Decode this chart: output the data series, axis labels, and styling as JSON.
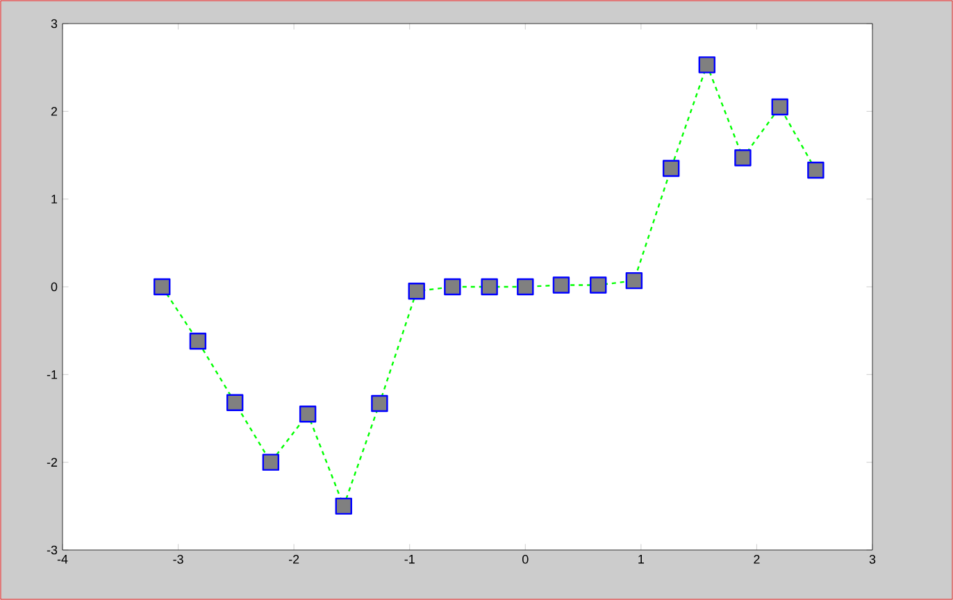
{
  "chart_data": {
    "type": "line",
    "x": [
      -3.14,
      -2.83,
      -2.51,
      -2.2,
      -1.88,
      -1.57,
      -1.26,
      -0.94,
      -0.63,
      -0.31,
      0,
      0.31,
      0.63,
      0.94,
      1.26,
      1.57,
      1.88,
      2.2,
      2.51
    ],
    "series": [
      {
        "color": "#00ff00",
        "values": [
          0,
          -0.62,
          -1.32,
          -2.0,
          -1.45,
          -2.5,
          -1.33,
          -0.05,
          0,
          0,
          0,
          0.02,
          0.02,
          0.07,
          1.35,
          2.53,
          1.47,
          2.05,
          1.33
        ]
      }
    ],
    "xlim": [
      -4,
      3
    ],
    "ylim": [
      -3,
      3
    ],
    "xticks": [
      -4,
      -3,
      -2,
      -1,
      0,
      1,
      2,
      3
    ],
    "yticks": [
      -3,
      -2,
      -1,
      0,
      1,
      2,
      3
    ],
    "marker": "square",
    "line_style": "dashed",
    "grid": false
  }
}
